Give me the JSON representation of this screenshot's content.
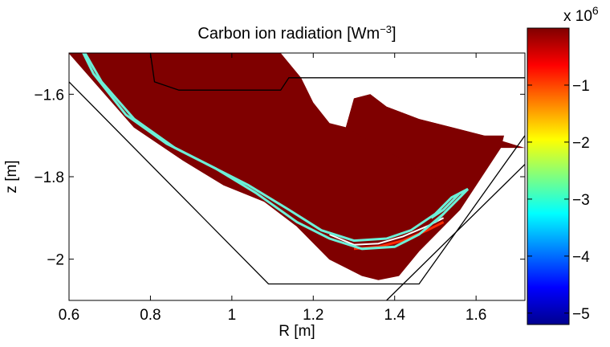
{
  "chart_data": {
    "type": "heatmap",
    "title": "Carbon ion radiation [Wm",
    "title_superscript": "−3",
    "title_suffix": "]",
    "xlabel": "R [m]",
    "ylabel": "z [m]",
    "xlim": [
      0.6,
      1.72
    ],
    "ylim": [
      -2.1,
      -1.5
    ],
    "xticks": [
      0.6,
      0.8,
      1.0,
      1.2,
      1.4,
      1.6
    ],
    "xtick_labels": [
      "0.6",
      "0.8",
      "1",
      "1.2",
      "1.4",
      "1.6"
    ],
    "yticks": [
      -1.6,
      -1.8,
      -2.0
    ],
    "ytick_labels": [
      "−1.6",
      "−1.8",
      "−2"
    ],
    "grid": false,
    "colorbar": {
      "colormap": "jet",
      "range": [
        -5.2,
        0
      ],
      "ticks": [
        -1,
        -2,
        -3,
        -4,
        -5
      ],
      "tick_labels": [
        "−1",
        "−2",
        "−3",
        "−4",
        "−5"
      ],
      "multiplier": "x 10",
      "multiplier_exponent": "6"
    },
    "region": {
      "name": "radiation domain",
      "value_level": 0,
      "color": "#7f0000",
      "boundary_R": [
        0.62,
        0.78,
        0.9,
        1.0,
        1.1,
        1.2,
        1.28,
        1.32,
        1.36,
        1.44,
        1.52,
        1.6,
        1.72,
        1.66,
        1.56,
        1.46,
        1.41,
        1.36,
        1.32,
        1.28,
        1.24,
        1.16,
        1.08,
        0.98,
        0.88,
        0.76,
        0.6
      ],
      "boundary_z": [
        -1.5,
        -1.5,
        -1.5,
        -1.5,
        -1.5,
        -1.5,
        -1.5,
        -1.5,
        -1.5,
        -1.5,
        -1.5,
        -1.5,
        -1.5,
        -1.73,
        -1.88,
        -1.98,
        -2.04,
        -2.05,
        -2.04,
        -2.02,
        -2.0,
        -1.92,
        -1.86,
        -1.82,
        -1.76,
        -1.68,
        -1.5
      ],
      "inner_cutout_R": [
        1.12,
        1.17,
        1.2,
        1.24,
        1.28,
        1.3,
        1.34,
        1.38,
        1.46,
        1.54,
        1.62
      ],
      "inner_cutout_z": [
        -1.5,
        -1.56,
        -1.62,
        -1.67,
        -1.68,
        -1.61,
        -1.6,
        -1.63,
        -1.66,
        -1.68,
        -1.7
      ]
    },
    "annotations": [
      {
        "name": "hot band",
        "R": [
          1.3,
          1.36,
          1.42,
          1.48,
          1.52
        ],
        "z": [
          -1.975,
          -1.97,
          -1.955,
          -1.93,
          -1.91
        ],
        "value_approx": -0.8,
        "color": "#ff2a00"
      }
    ],
    "series": [],
    "cyan_contours": [
      {
        "R": [
          0.6,
          0.66,
          0.74,
          0.84,
          0.94,
          1.04,
          1.14,
          1.22,
          1.3,
          1.38,
          1.44,
          1.5,
          1.54,
          1.58
        ],
        "z": [
          -1.43,
          -1.55,
          -1.65,
          -1.72,
          -1.77,
          -1.82,
          -1.88,
          -1.93,
          -1.955,
          -1.95,
          -1.93,
          -1.89,
          -1.85,
          -1.83
        ]
      },
      {
        "R": [
          0.61,
          0.68,
          0.76,
          0.86,
          0.96,
          1.06,
          1.16,
          1.24,
          1.32,
          1.4,
          1.46,
          1.52
        ],
        "z": [
          -1.45,
          -1.57,
          -1.66,
          -1.73,
          -1.78,
          -1.84,
          -1.91,
          -1.95,
          -1.975,
          -1.97,
          -1.94,
          -1.89
        ]
      },
      {
        "R": [
          1.49,
          1.52,
          1.54,
          1.56,
          1.58,
          1.56,
          1.53,
          1.5
        ],
        "z": [
          -1.9,
          -1.88,
          -1.86,
          -1.84,
          -1.83,
          -1.85,
          -1.88,
          -1.91
        ]
      }
    ],
    "wall_lines": [
      {
        "R": [
          0.6,
          1.09,
          1.46,
          1.72
        ],
        "z": [
          -1.57,
          -2.06,
          -2.06,
          -1.7
        ]
      },
      {
        "R": [
          1.38,
          1.72
        ],
        "z": [
          -2.1,
          -1.77
        ]
      },
      {
        "R": [
          0.8,
          0.81,
          0.87,
          1.12,
          1.14,
          1.72
        ],
        "z": [
          -1.5,
          -1.57,
          -1.59,
          -1.59,
          -1.56,
          -1.56
        ]
      }
    ]
  }
}
